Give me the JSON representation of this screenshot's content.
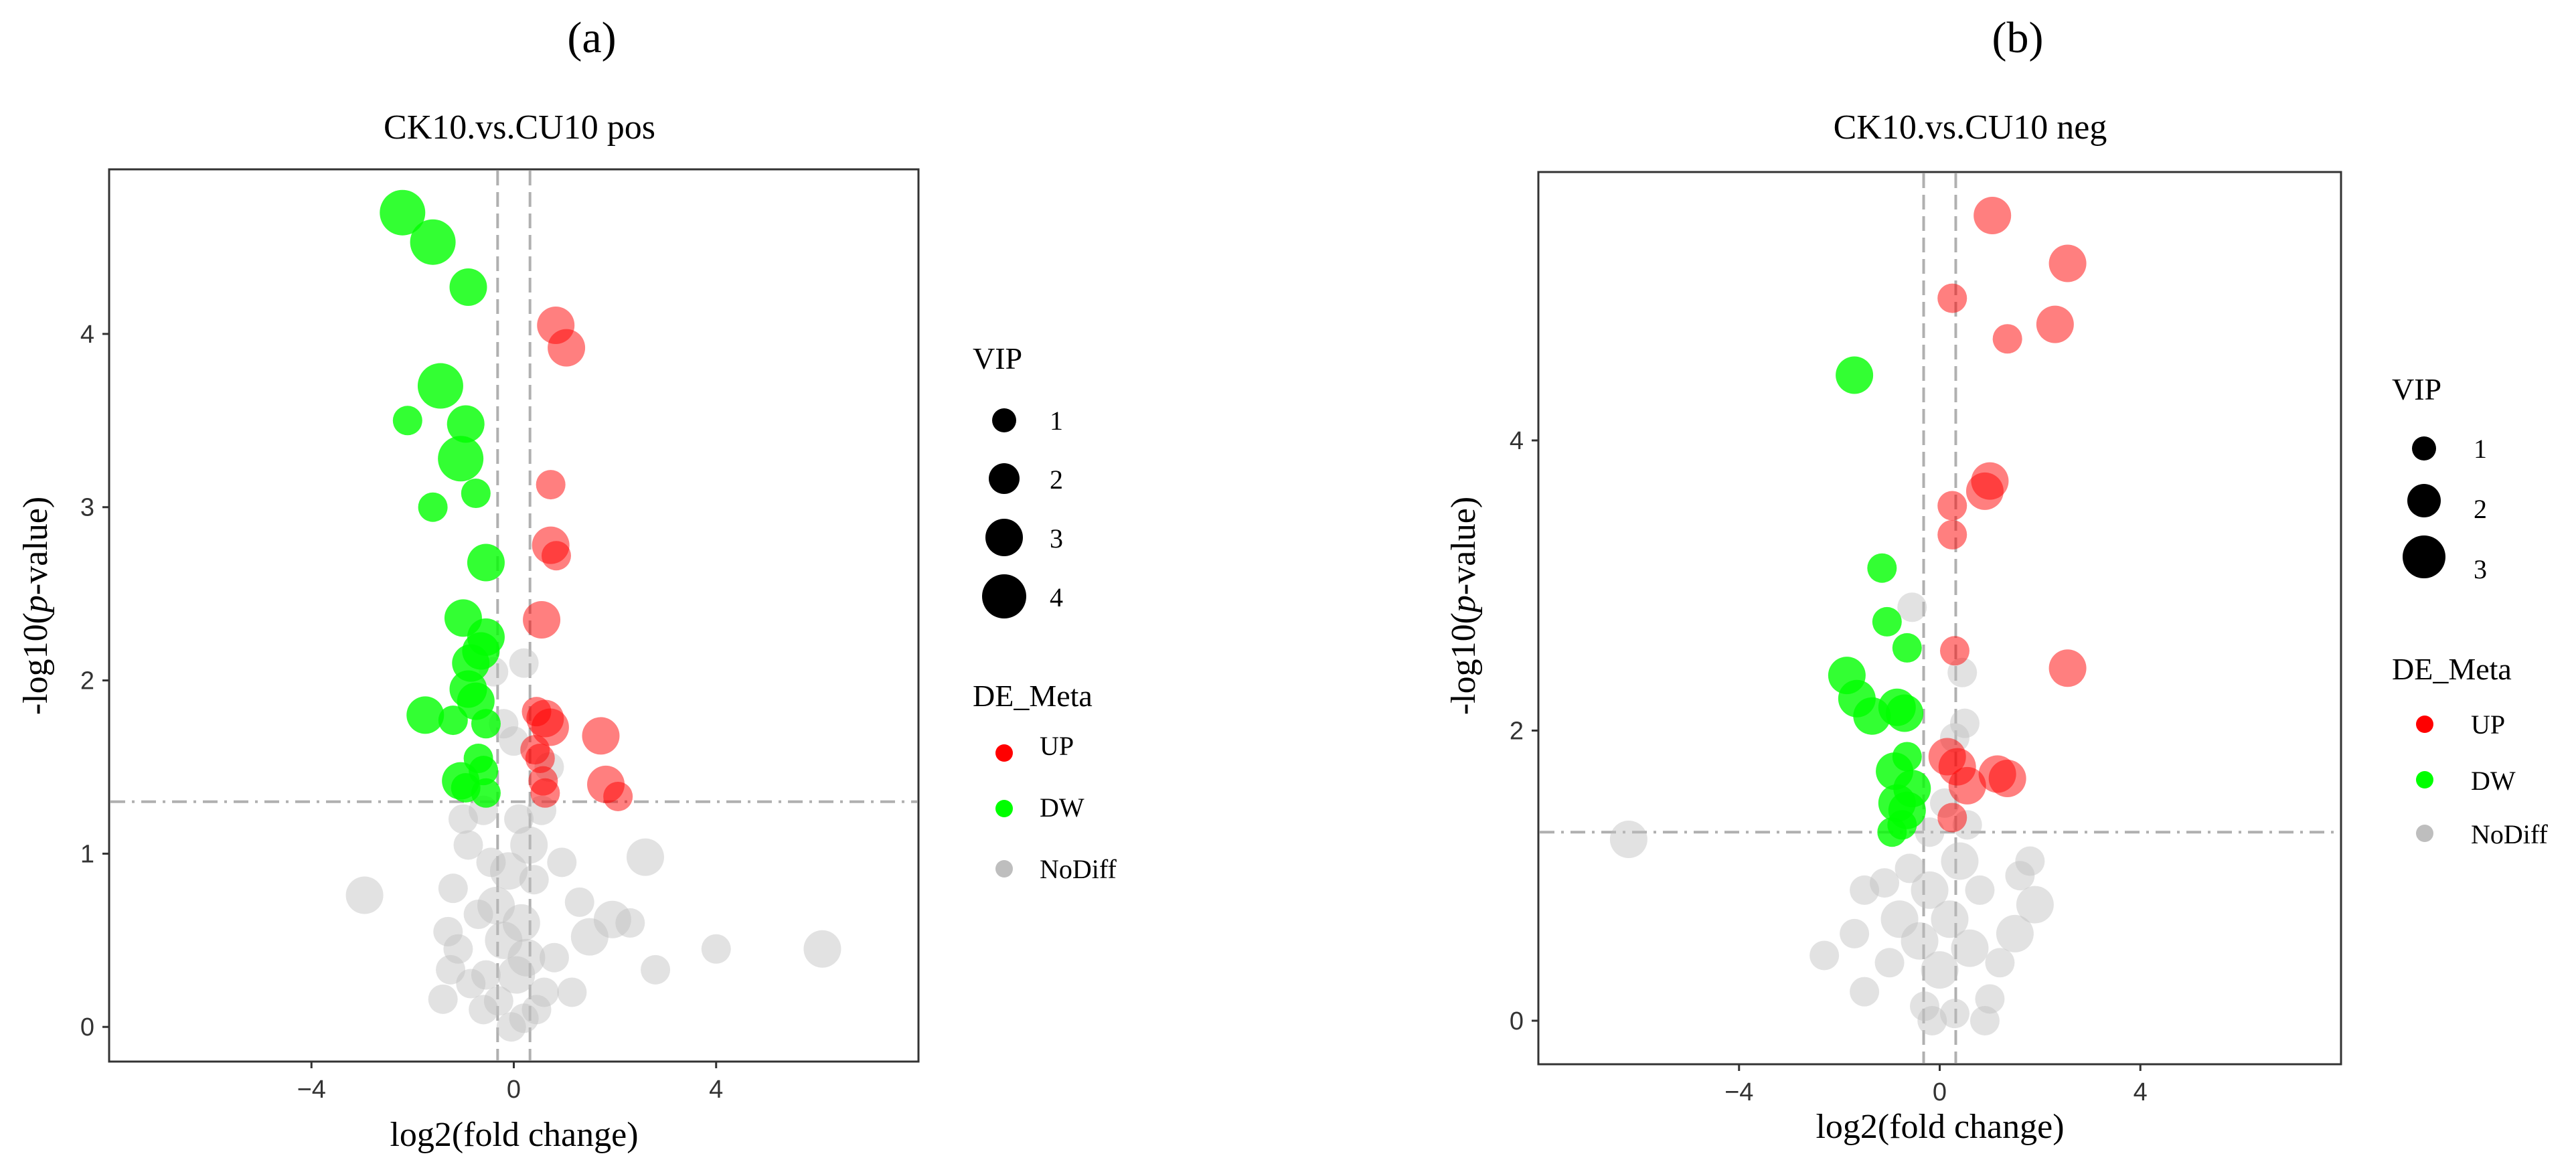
{
  "panels": [
    {
      "letter": "(a)",
      "title": "CK10.vs.CU10 pos",
      "xlabel": "log2(fold change)",
      "ylabel_prefix": "-log10(",
      "ylabel_italic": "p",
      "ylabel_suffix": "-value)",
      "legend": {
        "vip_title": "VIP",
        "vip_levels": [
          "1",
          "2",
          "3",
          "4"
        ],
        "de_title": "DE_Meta",
        "de_items": [
          {
            "label": "UP",
            "color": "#ff0000"
          },
          {
            "label": "DW",
            "color": "#00ff00"
          },
          {
            "label": "NoDiff",
            "color": "#bebebe"
          }
        ]
      }
    },
    {
      "letter": "(b)",
      "title": "CK10.vs.CU10 neg",
      "xlabel": "log2(fold change)",
      "ylabel_prefix": "-log10(",
      "ylabel_italic": "p",
      "ylabel_suffix": "-value)",
      "legend": {
        "vip_title": "VIP",
        "vip_levels": [
          "1",
          "2",
          "3"
        ],
        "de_title": "DE_Meta",
        "de_items": [
          {
            "label": "UP",
            "color": "#ff0000"
          },
          {
            "label": "DW",
            "color": "#00ff00"
          },
          {
            "label": "NoDiff",
            "color": "#bebebe"
          }
        ]
      }
    }
  ],
  "chart_data": [
    {
      "type": "scatter",
      "title": "CK10.vs.CU10 pos",
      "xlabel": "log2(fold change)",
      "ylabel": "-log10(p-value)",
      "xlim": [
        -8,
        8
      ],
      "ylim": [
        -0.2,
        4.95
      ],
      "xticks": [
        -4,
        0,
        4
      ],
      "yticks": [
        0,
        1,
        2,
        3,
        4
      ],
      "thresholds": {
        "x": [
          -0.32,
          0.32
        ],
        "y": 1.3
      },
      "grid": false,
      "legend_position": "right",
      "series": [
        {
          "name": "UP",
          "color": "#ff0000",
          "points": [
            [
              0.83,
              4.05,
              3
            ],
            [
              1.04,
              3.92,
              3
            ],
            [
              0.73,
              3.13,
              2
            ],
            [
              0.73,
              2.78,
              3
            ],
            [
              0.84,
              2.72,
              2
            ],
            [
              0.55,
              2.35,
              3
            ],
            [
              0.45,
              1.82,
              2
            ],
            [
              0.62,
              1.78,
              3
            ],
            [
              0.72,
              1.73,
              3
            ],
            [
              1.72,
              1.68,
              3
            ],
            [
              0.42,
              1.6,
              2
            ],
            [
              0.52,
              1.55,
              2
            ],
            [
              1.82,
              1.4,
              3
            ],
            [
              2.06,
              1.33,
              2
            ],
            [
              0.58,
              1.42,
              2
            ],
            [
              0.62,
              1.35,
              2
            ]
          ]
        },
        {
          "name": "DW",
          "color": "#00ff00",
          "points": [
            [
              -2.2,
              4.7,
              4
            ],
            [
              -1.6,
              4.53,
              4
            ],
            [
              -0.9,
              4.27,
              3
            ],
            [
              -1.45,
              3.7,
              4
            ],
            [
              -2.1,
              3.5,
              2
            ],
            [
              -0.95,
              3.48,
              3
            ],
            [
              -1.05,
              3.28,
              4
            ],
            [
              -0.75,
              3.08,
              2
            ],
            [
              -1.6,
              3.0,
              2
            ],
            [
              -0.55,
              2.68,
              3
            ],
            [
              -1.0,
              2.36,
              3
            ],
            [
              -0.55,
              2.25,
              3
            ],
            [
              -0.65,
              2.17,
              3
            ],
            [
              -0.85,
              2.1,
              3
            ],
            [
              -0.9,
              1.95,
              3
            ],
            [
              -0.75,
              1.88,
              3
            ],
            [
              -1.75,
              1.8,
              3
            ],
            [
              -1.2,
              1.77,
              2
            ],
            [
              -0.55,
              1.75,
              2
            ],
            [
              -0.7,
              1.55,
              2
            ],
            [
              -1.05,
              1.42,
              3
            ],
            [
              -0.6,
              1.48,
              2
            ],
            [
              -0.95,
              1.38,
              2
            ],
            [
              -0.55,
              1.35,
              2
            ]
          ]
        },
        {
          "name": "NoDiff",
          "color": "#bebebe",
          "points": [
            [
              -2.95,
              0.76,
              3
            ],
            [
              6.1,
              0.45,
              3
            ],
            [
              4.0,
              0.45,
              2
            ],
            [
              2.8,
              0.33,
              2
            ],
            [
              2.6,
              0.98,
              3
            ],
            [
              2.3,
              0.6,
              2
            ],
            [
              1.95,
              0.62,
              3
            ],
            [
              1.5,
              0.52,
              3
            ],
            [
              1.3,
              0.72,
              2
            ],
            [
              0.8,
              0.4,
              2
            ],
            [
              0.6,
              0.2,
              2
            ],
            [
              0.4,
              0.85,
              2
            ],
            [
              0.3,
              1.05,
              3
            ],
            [
              0.15,
              0.6,
              3
            ],
            [
              0.05,
              0.3,
              3
            ],
            [
              -0.1,
              0.9,
              3
            ],
            [
              -0.2,
              0.5,
              3
            ],
            [
              -0.3,
              0.15,
              2
            ],
            [
              -0.45,
              0.95,
              2
            ],
            [
              -0.55,
              0.3,
              2
            ],
            [
              -0.7,
              0.65,
              2
            ],
            [
              -0.85,
              0.25,
              2
            ],
            [
              -1.1,
              0.45,
              2
            ],
            [
              -1.2,
              0.8,
              2
            ],
            [
              -1.3,
              0.55,
              2
            ],
            [
              -1.4,
              0.16,
              2
            ],
            [
              -1.25,
              0.33,
              2
            ],
            [
              0.2,
              0.05,
              2
            ],
            [
              -0.05,
              0.0,
              2
            ],
            [
              0.55,
              1.25,
              2
            ],
            [
              -0.6,
              1.25,
              2
            ],
            [
              0.1,
              1.2,
              2
            ],
            [
              0.25,
              0.4,
              3
            ],
            [
              -0.35,
              0.7,
              3
            ],
            [
              1.15,
              0.2,
              2
            ],
            [
              0.95,
              0.95,
              2
            ],
            [
              -0.9,
              1.05,
              2
            ],
            [
              -0.4,
              2.05,
              2
            ],
            [
              0.2,
              2.1,
              2
            ],
            [
              -0.2,
              1.75,
              2
            ],
            [
              0.7,
              1.5,
              2
            ],
            [
              0.0,
              1.65,
              2
            ],
            [
              -0.6,
              0.1,
              2
            ],
            [
              0.45,
              0.1,
              2
            ],
            [
              -1.0,
              1.2,
              2
            ]
          ]
        }
      ]
    },
    {
      "type": "scatter",
      "title": "CK10.vs.CU10 neg",
      "xlabel": "log2(fold change)",
      "ylabel": "-log10(p-value)",
      "xlim": [
        -8,
        8
      ],
      "ylim": [
        -0.3,
        5.85
      ],
      "xticks": [
        -4,
        0,
        4
      ],
      "yticks": [
        0,
        2,
        4
      ],
      "thresholds": {
        "x": [
          -0.32,
          0.32
        ],
        "y": 1.3
      },
      "grid": false,
      "legend_position": "right",
      "series": [
        {
          "name": "UP",
          "color": "#ff0000",
          "points": [
            [
              1.05,
              5.55,
              3
            ],
            [
              2.55,
              5.22,
              3
            ],
            [
              0.25,
              4.98,
              2
            ],
            [
              2.3,
              4.8,
              3
            ],
            [
              1.35,
              4.7,
              2
            ],
            [
              1.0,
              3.72,
              3
            ],
            [
              0.9,
              3.65,
              3
            ],
            [
              0.25,
              3.55,
              2
            ],
            [
              0.25,
              3.35,
              2
            ],
            [
              0.3,
              2.55,
              2
            ],
            [
              2.55,
              2.43,
              3
            ],
            [
              0.15,
              1.82,
              3
            ],
            [
              0.35,
              1.75,
              3
            ],
            [
              0.55,
              1.62,
              3
            ],
            [
              1.15,
              1.7,
              3
            ],
            [
              1.35,
              1.67,
              3
            ],
            [
              0.25,
              1.4,
              2
            ]
          ]
        },
        {
          "name": "DW",
          "color": "#00ff00",
          "points": [
            [
              -1.7,
              4.45,
              3
            ],
            [
              -1.15,
              3.12,
              2
            ],
            [
              -0.65,
              2.57,
              2
            ],
            [
              -1.05,
              2.75,
              2
            ],
            [
              -1.85,
              2.38,
              3
            ],
            [
              -1.65,
              2.22,
              3
            ],
            [
              -0.85,
              2.16,
              3
            ],
            [
              -0.7,
              2.12,
              3
            ],
            [
              -1.35,
              2.1,
              3
            ],
            [
              -0.65,
              1.82,
              2
            ],
            [
              -0.9,
              1.72,
              3
            ],
            [
              -0.55,
              1.6,
              3
            ],
            [
              -0.85,
              1.5,
              3
            ],
            [
              -0.65,
              1.45,
              3
            ],
            [
              -0.75,
              1.35,
              2
            ],
            [
              -0.95,
              1.3,
              2
            ]
          ]
        },
        {
          "name": "NoDiff",
          "color": "#bebebe",
          "points": [
            [
              -6.2,
              1.25,
              3
            ],
            [
              -2.3,
              0.45,
              2
            ],
            [
              -1.7,
              0.6,
              2
            ],
            [
              -1.5,
              0.2,
              2
            ],
            [
              -1.5,
              0.9,
              2
            ],
            [
              1.6,
              1.0,
              2
            ],
            [
              1.8,
              1.1,
              2
            ],
            [
              1.9,
              0.8,
              3
            ],
            [
              1.5,
              0.6,
              3
            ],
            [
              1.2,
              0.4,
              2
            ],
            [
              1.0,
              0.15,
              2
            ],
            [
              0.8,
              0.9,
              2
            ],
            [
              0.6,
              0.5,
              3
            ],
            [
              0.4,
              1.1,
              3
            ],
            [
              0.2,
              0.7,
              3
            ],
            [
              0.0,
              0.35,
              3
            ],
            [
              -0.2,
              0.9,
              3
            ],
            [
              -0.4,
              0.55,
              3
            ],
            [
              -0.6,
              1.05,
              2
            ],
            [
              -0.8,
              0.7,
              3
            ],
            [
              -1.0,
              0.4,
              2
            ],
            [
              -1.1,
              0.95,
              2
            ],
            [
              -0.3,
              0.1,
              2
            ],
            [
              0.3,
              0.05,
              2
            ],
            [
              -0.55,
              2.85,
              2
            ],
            [
              0.5,
              2.05,
              2
            ],
            [
              0.3,
              1.95,
              2
            ],
            [
              0.55,
              1.35,
              2
            ],
            [
              -0.15,
              0.0,
              2
            ],
            [
              0.9,
              0.0,
              2
            ],
            [
              -0.2,
              1.3,
              2
            ],
            [
              0.1,
              1.5,
              2
            ],
            [
              0.45,
              2.4,
              2
            ]
          ]
        }
      ]
    }
  ]
}
